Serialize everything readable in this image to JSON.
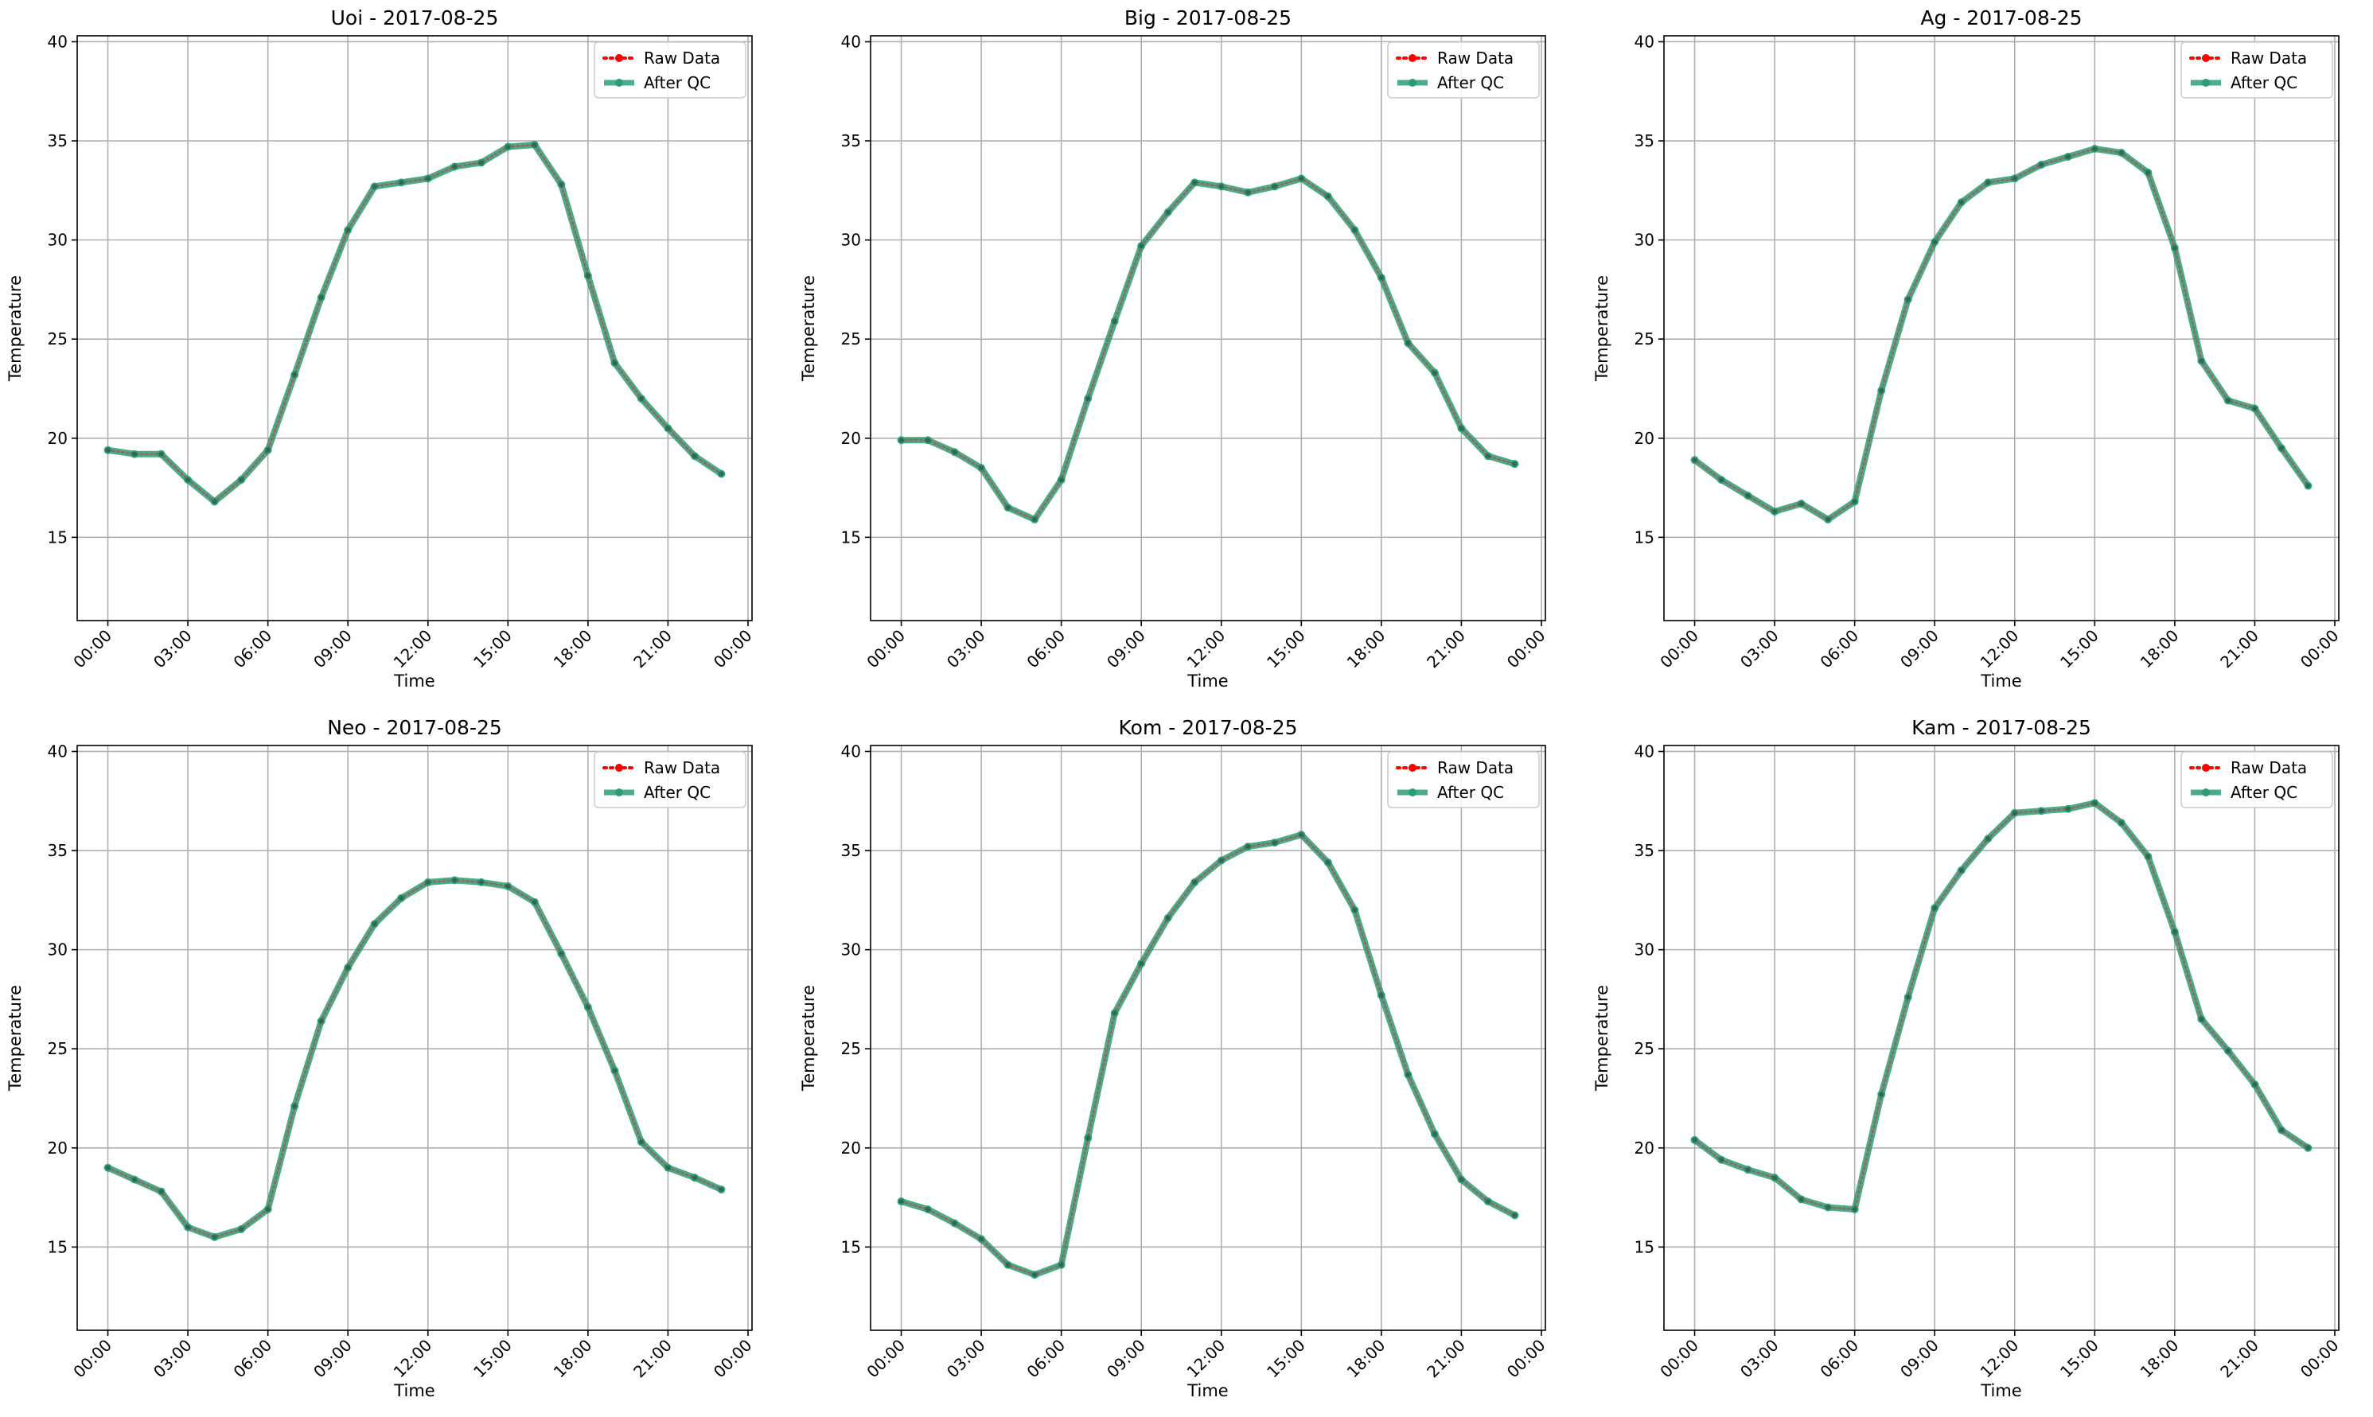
{
  "figure": {
    "x_tick_labels": [
      "00:00",
      "03:00",
      "06:00",
      "09:00",
      "12:00",
      "15:00",
      "18:00",
      "21:00",
      "00:00"
    ],
    "y_ticks": [
      15,
      20,
      25,
      30,
      35,
      40
    ],
    "colors": {
      "raw": "#ff0000",
      "qc": "#2a9d78",
      "grid": "#b0b0b0"
    }
  },
  "chart_data": [
    {
      "type": "line",
      "title": "Uoi - 2017-08-25",
      "xlabel": "Time",
      "ylabel": "Temperature",
      "ylim": [
        10.8,
        40.3
      ],
      "xlim_hours": [
        -1.15,
        24.15
      ],
      "grid": true,
      "legend": "top-right",
      "x_hours": [
        0,
        1,
        2,
        3,
        4,
        5,
        6,
        7,
        8,
        9,
        10,
        11,
        12,
        13,
        14,
        15,
        16,
        17,
        18,
        19,
        20,
        21,
        22,
        23
      ],
      "series": [
        {
          "name": "Raw Data",
          "values": [
            19.4,
            19.2,
            19.2,
            17.9,
            16.8,
            17.9,
            19.4,
            23.2,
            27.1,
            30.5,
            32.7,
            32.9,
            33.1,
            33.7,
            33.9,
            34.7,
            34.8,
            32.8,
            28.2,
            23.8,
            22.0,
            20.5,
            19.1,
            18.2
          ]
        },
        {
          "name": "After QC",
          "values": [
            19.4,
            19.2,
            19.2,
            17.9,
            16.8,
            17.9,
            19.4,
            23.2,
            27.1,
            30.5,
            32.7,
            32.9,
            33.1,
            33.7,
            33.9,
            34.7,
            34.8,
            32.8,
            28.2,
            23.8,
            22.0,
            20.5,
            19.1,
            18.2
          ]
        }
      ]
    },
    {
      "type": "line",
      "title": "Big - 2017-08-25",
      "xlabel": "Time",
      "ylabel": "Temperature",
      "ylim": [
        10.8,
        40.3
      ],
      "xlim_hours": [
        -1.15,
        24.15
      ],
      "grid": true,
      "legend": "top-right",
      "x_hours": [
        0,
        1,
        2,
        3,
        4,
        5,
        6,
        7,
        8,
        9,
        10,
        11,
        12,
        13,
        14,
        15,
        16,
        17,
        18,
        19,
        20,
        21,
        22,
        23
      ],
      "series": [
        {
          "name": "Raw Data",
          "values": [
            19.9,
            19.9,
            19.3,
            18.5,
            16.5,
            15.9,
            17.9,
            22.0,
            25.9,
            29.7,
            31.4,
            32.9,
            32.7,
            32.4,
            32.7,
            33.1,
            32.2,
            30.5,
            28.1,
            24.8,
            23.3,
            20.5,
            19.1,
            18.7
          ]
        },
        {
          "name": "After QC",
          "values": [
            19.9,
            19.9,
            19.3,
            18.5,
            16.5,
            15.9,
            17.9,
            22.0,
            25.9,
            29.7,
            31.4,
            32.9,
            32.7,
            32.4,
            32.7,
            33.1,
            32.2,
            30.5,
            28.1,
            24.8,
            23.3,
            20.5,
            19.1,
            18.7
          ]
        }
      ]
    },
    {
      "type": "line",
      "title": "Ag - 2017-08-25",
      "xlabel": "Time",
      "ylabel": "Temperature",
      "ylim": [
        10.8,
        40.3
      ],
      "xlim_hours": [
        -1.15,
        24.15
      ],
      "grid": true,
      "legend": "top-right",
      "x_hours": [
        0,
        1,
        2,
        3,
        4,
        5,
        6,
        7,
        8,
        9,
        10,
        11,
        12,
        13,
        14,
        15,
        16,
        17,
        18,
        19,
        20,
        21,
        22,
        23
      ],
      "series": [
        {
          "name": "Raw Data",
          "values": [
            18.9,
            17.9,
            17.1,
            16.3,
            16.7,
            15.9,
            16.8,
            22.4,
            27.0,
            29.9,
            31.9,
            32.9,
            33.1,
            33.8,
            34.2,
            34.6,
            34.4,
            33.4,
            29.6,
            23.9,
            21.9,
            21.5,
            19.5,
            17.6
          ]
        },
        {
          "name": "After QC",
          "values": [
            18.9,
            17.9,
            17.1,
            16.3,
            16.7,
            15.9,
            16.8,
            22.4,
            27.0,
            29.9,
            31.9,
            32.9,
            33.1,
            33.8,
            34.2,
            34.6,
            34.4,
            33.4,
            29.6,
            23.9,
            21.9,
            21.5,
            19.5,
            17.6
          ]
        }
      ]
    },
    {
      "type": "line",
      "title": "Neo - 2017-08-25",
      "xlabel": "Time",
      "ylabel": "Temperature",
      "ylim": [
        10.8,
        40.3
      ],
      "xlim_hours": [
        -1.15,
        24.15
      ],
      "grid": true,
      "legend": "top-right",
      "x_hours": [
        0,
        1,
        2,
        3,
        4,
        5,
        6,
        7,
        8,
        9,
        10,
        11,
        12,
        13,
        14,
        15,
        16,
        17,
        18,
        19,
        20,
        21,
        22,
        23
      ],
      "series": [
        {
          "name": "Raw Data",
          "values": [
            19.0,
            18.4,
            17.8,
            16.0,
            15.5,
            15.9,
            16.9,
            22.1,
            26.4,
            29.1,
            31.3,
            32.6,
            33.4,
            33.5,
            33.4,
            33.2,
            32.4,
            29.8,
            27.1,
            23.9,
            20.3,
            19.0,
            18.5,
            17.9
          ]
        },
        {
          "name": "After QC",
          "values": [
            19.0,
            18.4,
            17.8,
            16.0,
            15.5,
            15.9,
            16.9,
            22.1,
            26.4,
            29.1,
            31.3,
            32.6,
            33.4,
            33.5,
            33.4,
            33.2,
            32.4,
            29.8,
            27.1,
            23.9,
            20.3,
            19.0,
            18.5,
            17.9
          ]
        }
      ]
    },
    {
      "type": "line",
      "title": "Kom - 2017-08-25",
      "xlabel": "Time",
      "ylabel": "Temperature",
      "ylim": [
        10.8,
        40.3
      ],
      "xlim_hours": [
        -1.15,
        24.15
      ],
      "grid": true,
      "legend": "top-right",
      "x_hours": [
        0,
        1,
        2,
        3,
        4,
        5,
        6,
        7,
        8,
        9,
        10,
        11,
        12,
        13,
        14,
        15,
        16,
        17,
        18,
        19,
        20,
        21,
        22,
        23
      ],
      "series": [
        {
          "name": "Raw Data",
          "values": [
            17.3,
            16.9,
            16.2,
            15.4,
            14.1,
            13.6,
            14.1,
            20.5,
            26.8,
            29.3,
            31.6,
            33.4,
            34.5,
            35.2,
            35.4,
            35.8,
            34.4,
            32.0,
            27.7,
            23.7,
            20.7,
            18.4,
            17.3,
            16.6
          ]
        },
        {
          "name": "After QC",
          "values": [
            17.3,
            16.9,
            16.2,
            15.4,
            14.1,
            13.6,
            14.1,
            20.5,
            26.8,
            29.3,
            31.6,
            33.4,
            34.5,
            35.2,
            35.4,
            35.8,
            34.4,
            32.0,
            27.7,
            23.7,
            20.7,
            18.4,
            17.3,
            16.6
          ]
        }
      ]
    },
    {
      "type": "line",
      "title": "Kam - 2017-08-25",
      "xlabel": "Time",
      "ylabel": "Temperature",
      "ylim": [
        10.8,
        40.3
      ],
      "xlim_hours": [
        -1.15,
        24.15
      ],
      "grid": true,
      "legend": "top-right",
      "x_hours": [
        0,
        1,
        2,
        3,
        4,
        5,
        6,
        7,
        8,
        9,
        10,
        11,
        12,
        13,
        14,
        15,
        16,
        17,
        18,
        19,
        20,
        21,
        22,
        23
      ],
      "series": [
        {
          "name": "Raw Data",
          "values": [
            20.4,
            19.4,
            18.9,
            18.5,
            17.4,
            17.0,
            16.9,
            22.7,
            27.6,
            32.1,
            34.0,
            35.6,
            36.9,
            37.0,
            37.1,
            37.4,
            36.4,
            34.7,
            30.9,
            26.5,
            24.9,
            23.2,
            20.9,
            20.0
          ]
        },
        {
          "name": "After QC",
          "values": [
            20.4,
            19.4,
            18.9,
            18.5,
            17.4,
            17.0,
            16.9,
            22.7,
            27.6,
            32.1,
            34.0,
            35.6,
            36.9,
            37.0,
            37.1,
            37.4,
            36.4,
            34.7,
            30.9,
            26.5,
            24.9,
            23.2,
            20.9,
            20.0
          ]
        }
      ]
    }
  ]
}
